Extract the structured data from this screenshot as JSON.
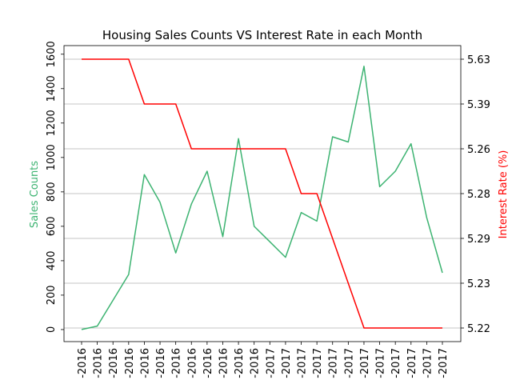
{
  "chart_data": {
    "type": "line",
    "title": "Housing Sales Counts VS Interest Rate in each Month",
    "x": [
      "-2016",
      "-2016",
      "-2016",
      "-2016",
      "-2016",
      "-2016",
      "-2016",
      "-2016",
      "-2016",
      "-2016",
      "-2016",
      "-2016",
      "-2017",
      "-2017",
      "-2017",
      "-2017",
      "-2017",
      "-2017",
      "-2017",
      "-2017",
      "-2017",
      "-2017",
      "-2017",
      "-2017"
    ],
    "ylabel": "Sales Counts",
    "y2label": "Interest Rate (%)",
    "ylim": [
      -70,
      1650
    ],
    "yticks": [
      0,
      200,
      400,
      600,
      800,
      1000,
      1200,
      1400,
      1600
    ],
    "series": [
      {
        "axis": "left",
        "color": "#3cb371",
        "values": [
          0,
          20,
          170,
          320,
          900,
          740,
          445,
          730,
          920,
          540,
          1110,
          600,
          510,
          420,
          680,
          630,
          1120,
          1090,
          1530,
          830,
          920,
          1080,
          650,
          330
        ]
      },
      {
        "axis": "right",
        "color": "#ff0000",
        "values": [
          "5.63",
          "5.63",
          "5.63",
          "5.63",
          "5.39",
          "5.39",
          "5.39",
          "5.26",
          "5.26",
          "5.26",
          "5.26",
          "5.26",
          "5.26",
          "5.26",
          "5.28",
          "5.28",
          "5.29",
          "5.23",
          "5.22",
          "5.22",
          "5.22",
          "5.22",
          "5.22",
          "5.22"
        ]
      }
    ],
    "y2_categories": [
      "5.22",
      "5.23",
      "5.29",
      "5.28",
      "5.26",
      "5.39",
      "5.63"
    ],
    "grid": "horizontal-right-axis"
  }
}
